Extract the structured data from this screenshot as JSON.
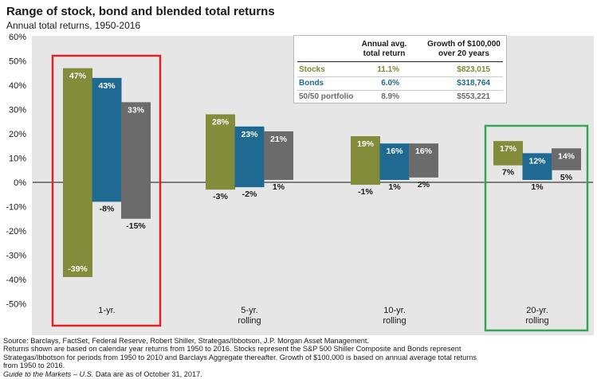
{
  "title": "Range of stock, bond and blended total returns",
  "subtitle": "Annual total returns, 1950-2016",
  "colors": {
    "stocks": "#838c3a",
    "bonds": "#1f6a93",
    "blend": "#6b6b6b",
    "highlight_1yr": "#e0232b",
    "highlight_20yr": "#3aa655"
  },
  "table": {
    "col1_line1": "Annual avg.",
    "col1_line2": "total return",
    "col2_line1": "Growth of $100,000",
    "col2_line2": "over 20 years",
    "rows": [
      {
        "name": "Stocks",
        "avg": "11.1%",
        "growth": "$823,015"
      },
      {
        "name": "Bonds",
        "avg": "6.0%",
        "growth": "$318,764"
      },
      {
        "name": "50/50 portfolio",
        "avg": "8.9%",
        "growth": "$553,221"
      }
    ]
  },
  "footnote": {
    "line1": "Source: Barclays, FactSet, Federal Reserve, Robert Shiller, Strategas/Ibbotson, J.P. Morgan Asset Management.",
    "line2": "Returns shown are based on calendar year returns from 1950 to 2016. Stocks represent the S&P 500 Shiller Composite and Bonds represent",
    "line3": "Strategas/Ibbotson for periods from 1950 to 2010 and Barclays Aggregate thereafter. Growth of $100,000 is based on annual average total returns",
    "line4": "from 1950 to 2016.",
    "line5_italic": "Guide to the Markets – U.S.",
    "line5_rest": " Data are as of October 31, 2017."
  },
  "chart_data": {
    "type": "bar",
    "subtype": "floating-range",
    "categories": [
      [
        "1-yr."
      ],
      [
        "5-yr.",
        "rolling"
      ],
      [
        "10-yr.",
        "rolling"
      ],
      [
        "20-yr.",
        "rolling"
      ]
    ],
    "series": [
      {
        "name": "Stocks",
        "max": [
          47,
          28,
          19,
          17
        ],
        "min": [
          -39,
          -3,
          -1,
          7
        ],
        "max_labels": [
          "47%",
          "28%",
          "19%",
          "17%"
        ],
        "min_labels": [
          "-39%",
          "-3%",
          "-1%",
          "7%"
        ]
      },
      {
        "name": "Bonds",
        "max": [
          43,
          23,
          16,
          12
        ],
        "min": [
          -8,
          -2,
          1,
          1
        ],
        "max_labels": [
          "43%",
          "23%",
          "16%",
          "12%"
        ],
        "min_labels": [
          "-8%",
          "-2%",
          "1%",
          "1%"
        ]
      },
      {
        "name": "50/50 portfolio",
        "max": [
          33,
          21,
          16,
          14
        ],
        "min": [
          -15,
          1,
          2,
          5
        ],
        "max_labels": [
          "33%",
          "21%",
          "16%",
          "14%"
        ],
        "min_labels": [
          "-15%",
          "1%",
          "2%",
          "5%"
        ]
      }
    ],
    "y_ticks": [
      "60%",
      "50%",
      "40%",
      "30%",
      "20%",
      "10%",
      "0%",
      "-10%",
      "-20%",
      "-30%",
      "-40%",
      "-50%"
    ],
    "ylim": [
      -50,
      60
    ],
    "highlight": [
      "1-yr.",
      "20-yr."
    ]
  }
}
